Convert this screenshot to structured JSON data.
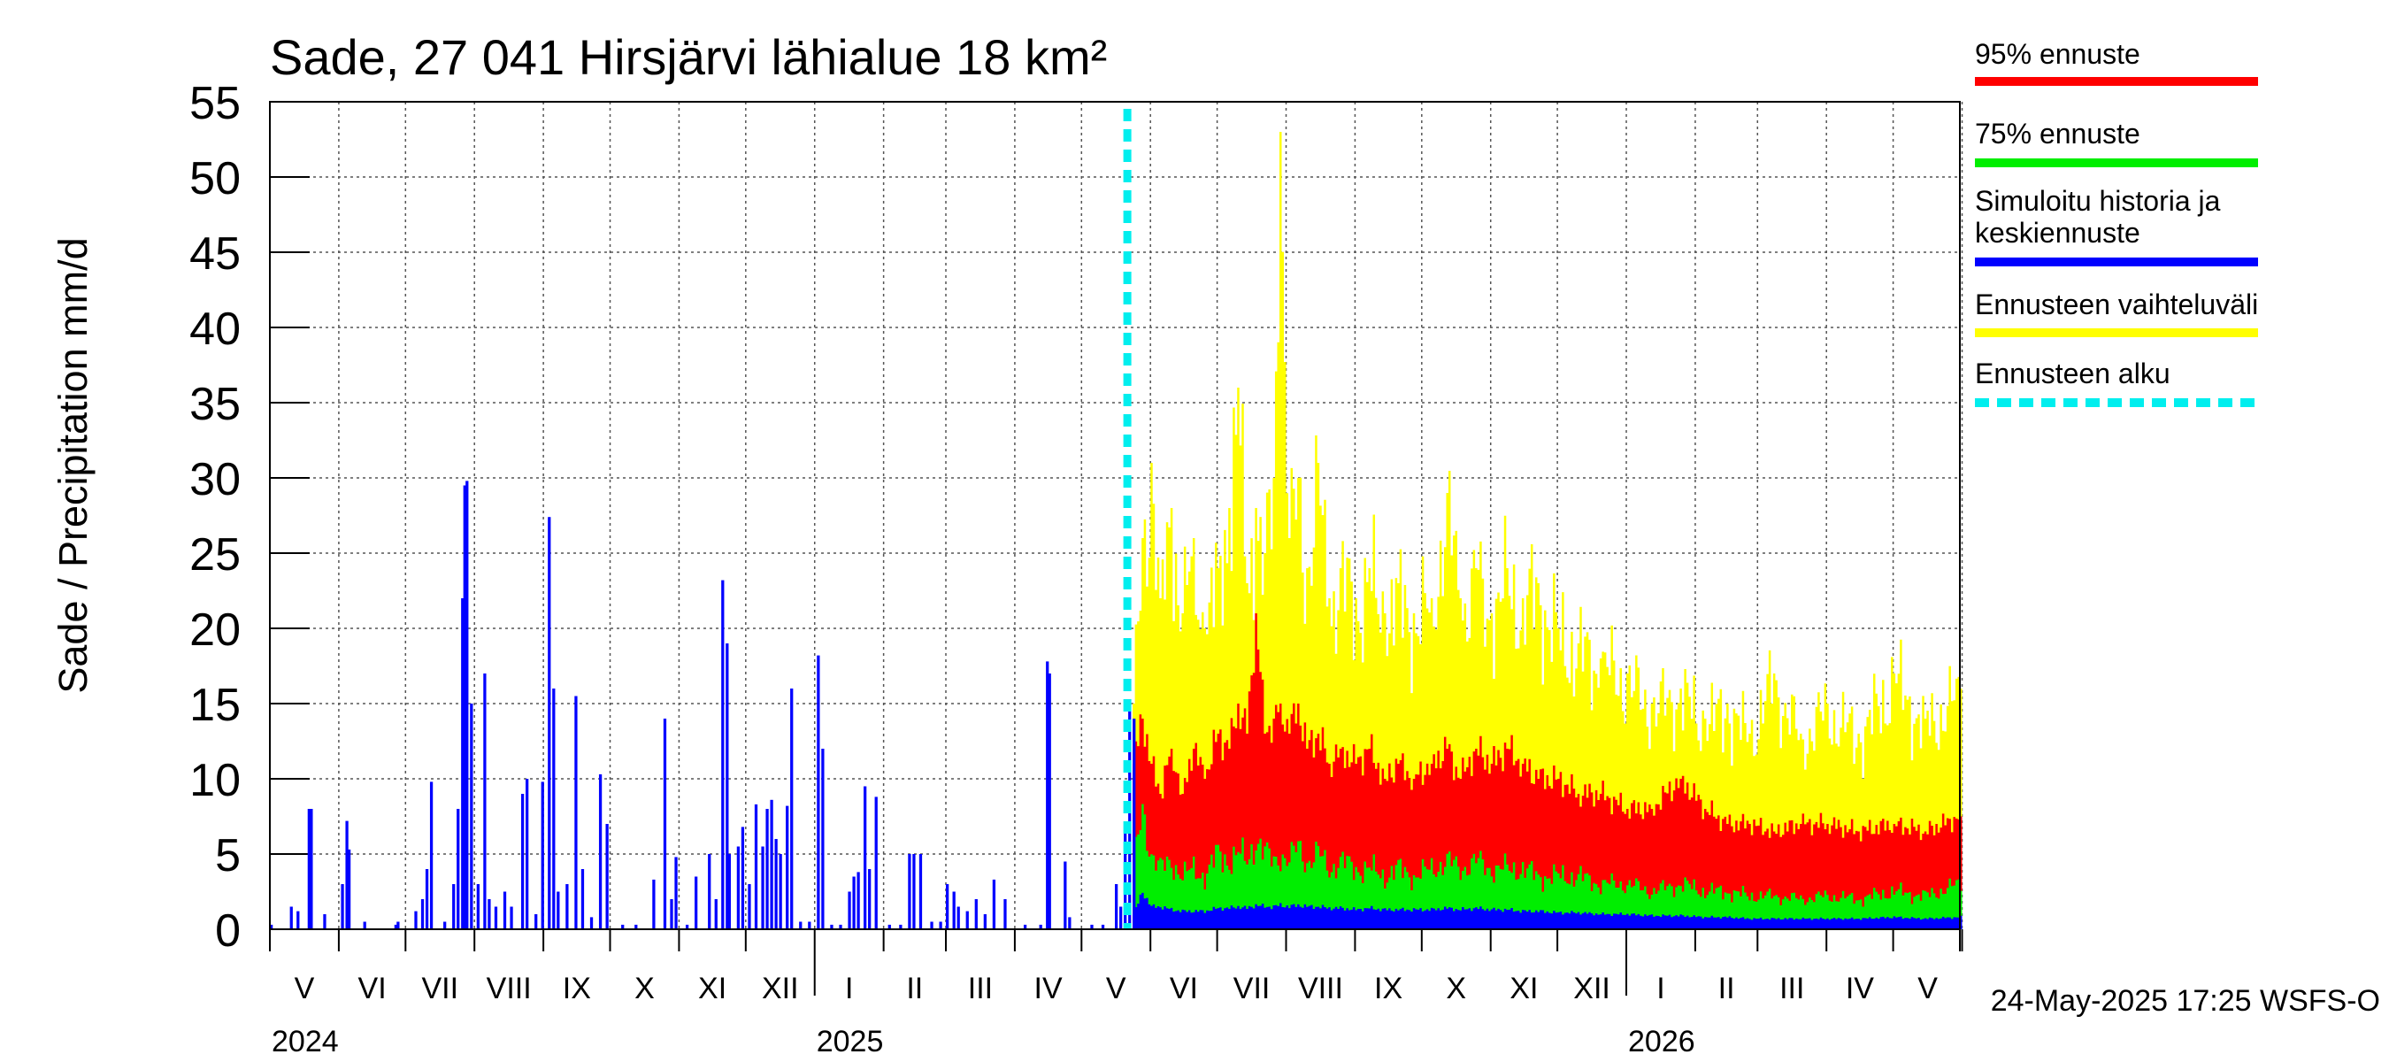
{
  "chart_data": {
    "type": "bar",
    "title": "Sade, 27 041 Hirsjärvi lähialue 18 km²",
    "ylabel": "Sade / Precipitation   mm/d",
    "ylim": [
      0,
      55
    ],
    "yticks": [
      "0",
      "5",
      "10",
      "15",
      "20",
      "25",
      "30",
      "35",
      "40",
      "45",
      "50",
      "55"
    ],
    "x_start": "2024-05-01",
    "x_end": "2026-05-31",
    "forecast_start": "2025-05-24",
    "months": [
      "V",
      "VI",
      "VII",
      "VIII",
      "IX",
      "X",
      "XI",
      "XII",
      "I",
      "II",
      "III",
      "IV",
      "V",
      "VI",
      "VII",
      "VIII",
      "IX",
      "X",
      "XI",
      "XII",
      "I",
      "II",
      "III",
      "IV",
      "V"
    ],
    "years": [
      {
        "label": "2024",
        "date": "2024-05-01"
      },
      {
        "label": "2025",
        "date": "2025-01-01"
      },
      {
        "label": "2026",
        "date": "2026-01-01"
      }
    ],
    "timestamp": "24-May-2025 17:25 WSFS-O",
    "legend": [
      {
        "label": "95% ennuste",
        "color": "#ff0000",
        "style": "solid"
      },
      {
        "label": "75% ennuste",
        "color": "#00ee00",
        "style": "solid"
      },
      {
        "label": "Simuloitu historia ja keskiennuste",
        "color": "#0000ff",
        "style": "solid"
      },
      {
        "label": "Ennusteen vaihteluväli",
        "color": "#ffff00",
        "style": "solid"
      },
      {
        "label": "Ennusteen alku",
        "color": "#00eeee",
        "style": "dashed"
      }
    ],
    "colors": {
      "history": "#0000ff",
      "range": "#ffff00",
      "p95": "#ff0000",
      "p75": "#00ee00",
      "median": "#0000ff",
      "forecast_line": "#00eeee"
    },
    "history_series": {
      "name": "Simuloitu historia",
      "points": [
        [
          "2024-05-01",
          0.3
        ],
        [
          "2024-05-10",
          1.5
        ],
        [
          "2024-05-13",
          1.2
        ],
        [
          "2024-05-18",
          8.0
        ],
        [
          "2024-05-19",
          8.0
        ],
        [
          "2024-05-25",
          1.0
        ],
        [
          "2024-06-02",
          3.0
        ],
        [
          "2024-06-04",
          7.2
        ],
        [
          "2024-06-05",
          5.3
        ],
        [
          "2024-06-12",
          0.5
        ],
        [
          "2024-06-26",
          0.3
        ],
        [
          "2024-06-27",
          0.5
        ],
        [
          "2024-07-05",
          1.2
        ],
        [
          "2024-07-08",
          2.0
        ],
        [
          "2024-07-10",
          4.0
        ],
        [
          "2024-07-12",
          9.8
        ],
        [
          "2024-07-18",
          0.5
        ],
        [
          "2024-07-22",
          3.0
        ],
        [
          "2024-07-24",
          8.0
        ],
        [
          "2024-07-26",
          22.0
        ],
        [
          "2024-07-27",
          29.5
        ],
        [
          "2024-07-28",
          29.8
        ],
        [
          "2024-07-30",
          15.0
        ],
        [
          "2024-08-02",
          3.0
        ],
        [
          "2024-08-05",
          17.0
        ],
        [
          "2024-08-07",
          2.0
        ],
        [
          "2024-08-10",
          1.5
        ],
        [
          "2024-08-14",
          2.5
        ],
        [
          "2024-08-17",
          1.5
        ],
        [
          "2024-08-22",
          9.0
        ],
        [
          "2024-08-24",
          10.0
        ],
        [
          "2024-08-28",
          1.0
        ],
        [
          "2024-08-31",
          9.8
        ],
        [
          "2024-09-03",
          27.4
        ],
        [
          "2024-09-05",
          16.0
        ],
        [
          "2024-09-07",
          2.5
        ],
        [
          "2024-09-11",
          3.0
        ],
        [
          "2024-09-15",
          15.5
        ],
        [
          "2024-09-18",
          4.0
        ],
        [
          "2024-09-22",
          0.8
        ],
        [
          "2024-09-26",
          10.3
        ],
        [
          "2024-09-29",
          7.0
        ],
        [
          "2024-10-06",
          0.3
        ],
        [
          "2024-10-12",
          0.3
        ],
        [
          "2024-10-20",
          3.3
        ],
        [
          "2024-10-25",
          14.0
        ],
        [
          "2024-10-28",
          2.0
        ],
        [
          "2024-10-30",
          4.8
        ],
        [
          "2024-11-04",
          0.3
        ],
        [
          "2024-11-08",
          3.5
        ],
        [
          "2024-11-14",
          5.0
        ],
        [
          "2024-11-17",
          2.0
        ],
        [
          "2024-11-20",
          23.2
        ],
        [
          "2024-11-22",
          19.0
        ],
        [
          "2024-11-23",
          5.0
        ],
        [
          "2024-11-27",
          5.5
        ],
        [
          "2024-11-29",
          6.8
        ],
        [
          "2024-12-02",
          3.0
        ],
        [
          "2024-12-05",
          8.3
        ],
        [
          "2024-12-08",
          5.5
        ],
        [
          "2024-12-10",
          8.0
        ],
        [
          "2024-12-12",
          8.6
        ],
        [
          "2024-12-14",
          6.0
        ],
        [
          "2024-12-16",
          5.0
        ],
        [
          "2024-12-19",
          8.2
        ],
        [
          "2024-12-21",
          16.0
        ],
        [
          "2024-12-25",
          0.5
        ],
        [
          "2024-12-29",
          0.5
        ],
        [
          "2025-01-02",
          18.2
        ],
        [
          "2025-01-04",
          12.0
        ],
        [
          "2025-01-08",
          0.3
        ],
        [
          "2025-01-12",
          0.3
        ],
        [
          "2025-01-16",
          2.5
        ],
        [
          "2025-01-18",
          3.5
        ],
        [
          "2025-01-20",
          3.8
        ],
        [
          "2025-01-23",
          9.5
        ],
        [
          "2025-01-25",
          4.0
        ],
        [
          "2025-01-28",
          8.8
        ],
        [
          "2025-02-03",
          0.3
        ],
        [
          "2025-02-08",
          0.3
        ],
        [
          "2025-02-12",
          5.0
        ],
        [
          "2025-02-14",
          5.0
        ],
        [
          "2025-02-17",
          5.0
        ],
        [
          "2025-02-22",
          0.5
        ],
        [
          "2025-02-26",
          0.5
        ],
        [
          "2025-03-01",
          3.0
        ],
        [
          "2025-03-04",
          2.5
        ],
        [
          "2025-03-06",
          1.5
        ],
        [
          "2025-03-10",
          1.2
        ],
        [
          "2025-03-14",
          2.0
        ],
        [
          "2025-03-18",
          1.0
        ],
        [
          "2025-03-22",
          3.3
        ],
        [
          "2025-03-27",
          2.0
        ],
        [
          "2025-04-05",
          0.3
        ],
        [
          "2025-04-12",
          0.3
        ],
        [
          "2025-04-15",
          17.8
        ],
        [
          "2025-04-16",
          17.0
        ],
        [
          "2025-04-23",
          4.5
        ],
        [
          "2025-04-25",
          0.8
        ],
        [
          "2025-05-05",
          0.3
        ],
        [
          "2025-05-10",
          0.3
        ],
        [
          "2025-05-16",
          3.0
        ],
        [
          "2025-05-18",
          1.5
        ],
        [
          "2025-05-20",
          7.0
        ],
        [
          "2025-05-22",
          14.8
        ],
        [
          "2025-05-24",
          14.0
        ]
      ]
    },
    "forecast_series": {
      "names": [
        "Ennusteen vaihteluväli (max)",
        "95% ennuste",
        "75% ennuste",
        "Keskiennuste"
      ],
      "anchors": [
        {
          "date": "2025-05-24",
          "max": 15,
          "p95": 11,
          "p75": 4,
          "median": 1.0
        },
        {
          "date": "2025-05-28",
          "max": 26,
          "p95": 14,
          "p75": 8,
          "median": 2.5
        },
        {
          "date": "2025-06-01",
          "max": 31,
          "p95": 11,
          "p75": 5,
          "median": 1.5
        },
        {
          "date": "2025-06-05",
          "max": 22,
          "p95": 9,
          "p75": 4,
          "median": 1.5
        },
        {
          "date": "2025-06-10",
          "max": 28,
          "p95": 12,
          "p75": 4.5,
          "median": 1.3
        },
        {
          "date": "2025-06-15",
          "max": 21,
          "p95": 9,
          "p75": 3.5,
          "median": 1.2
        },
        {
          "date": "2025-06-20",
          "max": 26,
          "p95": 12,
          "p75": 4,
          "median": 1.2
        },
        {
          "date": "2025-06-25",
          "max": 20,
          "p95": 10,
          "p75": 3.5,
          "median": 1.2
        },
        {
          "date": "2025-07-01",
          "max": 24,
          "p95": 13,
          "p75": 5,
          "median": 1.4
        },
        {
          "date": "2025-07-06",
          "max": 28,
          "p95": 12,
          "p75": 4.5,
          "median": 1.4
        },
        {
          "date": "2025-07-10",
          "max": 36,
          "p95": 15,
          "p75": 5,
          "median": 1.5
        },
        {
          "date": "2025-07-14",
          "max": 23,
          "p95": 13,
          "p75": 4.5,
          "median": 1.4
        },
        {
          "date": "2025-07-18",
          "max": 28,
          "p95": 21,
          "p75": 6,
          "median": 1.6
        },
        {
          "date": "2025-07-22",
          "max": 25,
          "p95": 13,
          "p75": 5,
          "median": 1.5
        },
        {
          "date": "2025-07-26",
          "max": 30,
          "p95": 14,
          "p75": 4.5,
          "median": 1.5
        },
        {
          "date": "2025-07-29",
          "max": 53,
          "p95": 15,
          "p75": 5,
          "median": 1.6
        },
        {
          "date": "2025-08-02",
          "max": 26,
          "p95": 13,
          "p75": 4.5,
          "median": 1.5
        },
        {
          "date": "2025-08-06",
          "max": 30,
          "p95": 15,
          "p75": 5.5,
          "median": 1.6
        },
        {
          "date": "2025-08-10",
          "max": 24,
          "p95": 12,
          "p75": 4.5,
          "median": 1.5
        },
        {
          "date": "2025-08-15",
          "max": 31,
          "p95": 13,
          "p75": 5,
          "median": 1.5
        },
        {
          "date": "2025-08-20",
          "max": 22,
          "p95": 11,
          "p75": 4,
          "median": 1.4
        },
        {
          "date": "2025-08-25",
          "max": 24,
          "p95": 12,
          "p75": 4.5,
          "median": 1.4
        },
        {
          "date": "2025-09-01",
          "max": 22,
          "p95": 11,
          "p75": 4,
          "median": 1.3
        },
        {
          "date": "2025-09-07",
          "max": 24,
          "p95": 12,
          "p75": 4,
          "median": 1.4
        },
        {
          "date": "2025-09-14",
          "max": 21,
          "p95": 10,
          "p75": 3.5,
          "median": 1.3
        },
        {
          "date": "2025-09-20",
          "max": 23,
          "p95": 11,
          "p75": 4,
          "median": 1.3
        },
        {
          "date": "2025-09-27",
          "max": 21,
          "p95": 10,
          "p75": 3.5,
          "median": 1.3
        },
        {
          "date": "2025-10-05",
          "max": 22,
          "p95": 11,
          "p75": 4,
          "median": 1.3
        },
        {
          "date": "2025-10-12",
          "max": 29,
          "p95": 12,
          "p75": 4.5,
          "median": 1.4
        },
        {
          "date": "2025-10-18",
          "max": 22,
          "p95": 10,
          "p75": 4,
          "median": 1.3
        },
        {
          "date": "2025-10-25",
          "max": 24,
          "p95": 12,
          "p75": 4.5,
          "median": 1.4
        },
        {
          "date": "2025-11-01",
          "max": 21,
          "p95": 11,
          "p75": 4,
          "median": 1.3
        },
        {
          "date": "2025-11-08",
          "max": 24,
          "p95": 12,
          "p75": 4,
          "median": 1.3
        },
        {
          "date": "2025-11-15",
          "max": 22,
          "p95": 11,
          "p75": 4,
          "median": 1.2
        },
        {
          "date": "2025-11-22",
          "max": 23,
          "p95": 10,
          "p75": 3.5,
          "median": 1.2
        },
        {
          "date": "2025-12-01",
          "max": 20,
          "p95": 10,
          "p75": 3.5,
          "median": 1.1
        },
        {
          "date": "2025-12-10",
          "max": 19,
          "p95": 9,
          "p75": 3.5,
          "median": 1.1
        },
        {
          "date": "2025-12-20",
          "max": 18,
          "p95": 9,
          "p75": 3,
          "median": 1.0
        },
        {
          "date": "2026-01-01",
          "max": 17,
          "p95": 8,
          "p75": 3,
          "median": 1.0
        },
        {
          "date": "2026-01-12",
          "max": 15,
          "p95": 8,
          "p75": 2.5,
          "median": 0.9
        },
        {
          "date": "2026-01-25",
          "max": 16,
          "p95": 10,
          "p75": 3,
          "median": 0.9
        },
        {
          "date": "2026-02-05",
          "max": 14,
          "p95": 8,
          "p75": 2.5,
          "median": 0.8
        },
        {
          "date": "2026-02-15",
          "max": 15,
          "p95": 7,
          "p75": 2.5,
          "median": 0.8
        },
        {
          "date": "2026-02-25",
          "max": 13,
          "p95": 7,
          "p75": 2.2,
          "median": 0.7
        },
        {
          "date": "2026-03-08",
          "max": 17,
          "p95": 6.5,
          "p75": 2.2,
          "median": 0.7
        },
        {
          "date": "2026-03-20",
          "max": 13,
          "p95": 7,
          "p75": 2,
          "median": 0.7
        },
        {
          "date": "2026-04-01",
          "max": 15,
          "p95": 7,
          "p75": 2.2,
          "median": 0.7
        },
        {
          "date": "2026-04-15",
          "max": 13,
          "p95": 6.5,
          "p75": 2,
          "median": 0.7
        },
        {
          "date": "2026-05-01",
          "max": 17,
          "p95": 7,
          "p75": 2.5,
          "median": 0.8
        },
        {
          "date": "2026-05-15",
          "max": 14,
          "p95": 6.5,
          "p75": 2.2,
          "median": 0.7
        },
        {
          "date": "2026-05-31",
          "max": 16,
          "p95": 7.5,
          "p75": 3,
          "median": 0.8
        }
      ]
    }
  }
}
